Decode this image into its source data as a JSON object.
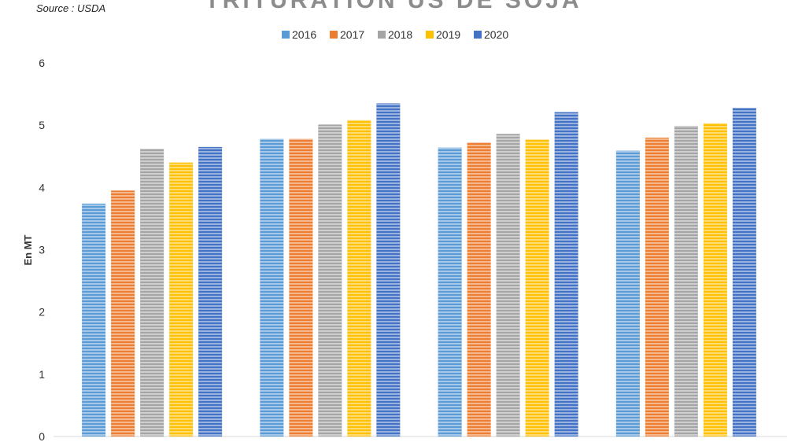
{
  "source": "Source : USDA",
  "chart_data": {
    "type": "bar",
    "title": "TRITURATION US DE SOJA",
    "xlabel": "",
    "ylabel": "En MT",
    "ylim": [
      0,
      6
    ],
    "yticks": [
      "0",
      "1",
      "2",
      "3",
      "4",
      "5",
      "6"
    ],
    "categories": [
      "",
      "",
      "",
      ""
    ],
    "legend_position": "top",
    "grid": false,
    "series": [
      {
        "name": "2016",
        "color": "#5b9bd5",
        "values": [
          3.74,
          4.78,
          4.64,
          4.59
        ]
      },
      {
        "name": "2017",
        "color": "#ed7d31",
        "values": [
          3.95,
          4.78,
          4.72,
          4.8
        ]
      },
      {
        "name": "2018",
        "color": "#a5a5a5",
        "values": [
          4.62,
          5.01,
          4.86,
          4.99
        ]
      },
      {
        "name": "2019",
        "color": "#ffc000",
        "values": [
          4.4,
          5.08,
          4.77,
          5.03
        ]
      },
      {
        "name": "2020",
        "color": "#4472c4",
        "values": [
          4.65,
          5.35,
          5.21,
          5.28
        ]
      }
    ]
  }
}
